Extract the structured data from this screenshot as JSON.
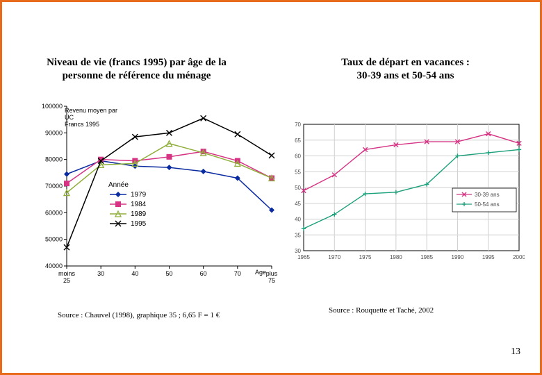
{
  "page_number": "13",
  "title_left_line1": "Niveau de vie (francs 1995) par âge de la",
  "title_left_line2": "personne de référence du ménage",
  "title_right_line1": "Taux de départ en vacances :",
  "title_right_line2": "30-39 ans et 50-54 ans",
  "source_left": "Source : Chauvel (1998), graphique 35 ; 6,65 F = 1 €",
  "source_right": "Source : Rouquette et Taché, 2002",
  "chart_left": {
    "type": "line",
    "y_axis_label_line1": "Revenu moyen par",
    "y_axis_label_line2": "UC",
    "y_axis_label_line3": "Francs 1995",
    "x_axis_label": "Age",
    "x_ticks": [
      "moins\n25",
      "30",
      "40",
      "50",
      "60",
      "70",
      "plus\n75"
    ],
    "y_min": 40000,
    "y_max": 100000,
    "y_tick_step": 10000,
    "legend_title": "Année",
    "series": [
      {
        "name": "1979",
        "color": "#0a2aa0",
        "marker": "diamond",
        "values": [
          74500,
          79500,
          77500,
          77000,
          75500,
          73000,
          61000
        ]
      },
      {
        "name": "1984",
        "color": "#d63384",
        "marker": "square",
        "values": [
          71000,
          80000,
          79500,
          81000,
          83000,
          79500,
          73000
        ]
      },
      {
        "name": "1989",
        "color": "#8fae3a",
        "marker": "triangle",
        "values": [
          67500,
          78000,
          78500,
          86000,
          82500,
          78500,
          73000
        ]
      },
      {
        "name": "1995",
        "color": "#000000",
        "marker": "x",
        "values": [
          47000,
          79500,
          88500,
          90000,
          95500,
          89500,
          81500
        ]
      }
    ],
    "axis_color": "#000000",
    "grid_color": "#000000",
    "background": "#ffffff"
  },
  "chart_right": {
    "type": "line",
    "x_ticks": [
      "1965",
      "1970",
      "1975",
      "1980",
      "1985",
      "1990",
      "1995",
      "2000"
    ],
    "y_min": 30,
    "y_max": 70,
    "y_tick_step": 5,
    "series": [
      {
        "name": "30-39 ans",
        "color": "#d63384",
        "marker": "x",
        "values": [
          49,
          54,
          62,
          63.5,
          64.5,
          64.5,
          67,
          64
        ]
      },
      {
        "name": "50-54 ans",
        "color": "#1aa07a",
        "marker": "plus",
        "values": [
          37,
          41.5,
          48,
          48.5,
          51,
          60,
          61,
          62
        ]
      }
    ],
    "border_color": "#000000",
    "grid_color": "#cfcfcf",
    "background": "#ffffff",
    "label_fontsize": 8,
    "label_color": "#4a4a4a"
  }
}
